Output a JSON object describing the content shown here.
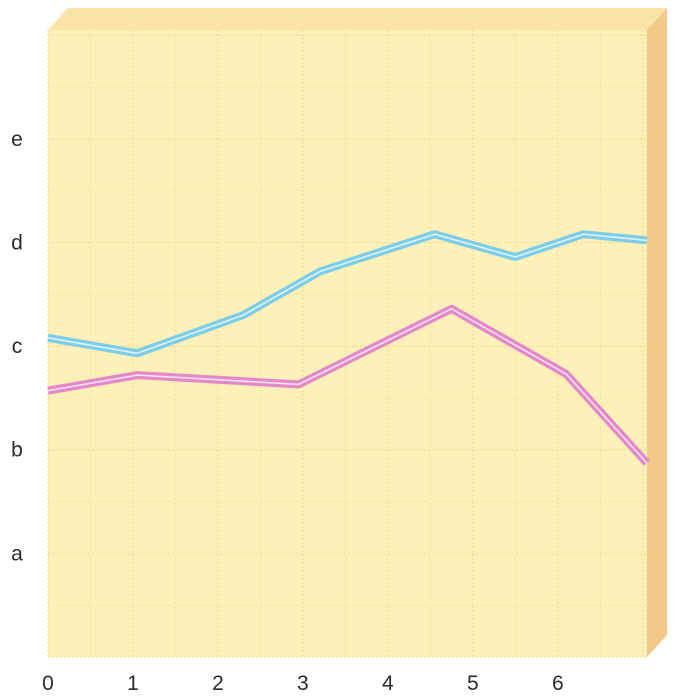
{
  "chart_data": {
    "type": "line",
    "title": "",
    "xlabel": "",
    "ylabel": "",
    "x_ticks": [
      "0",
      "1",
      "2",
      "3",
      "4",
      "5",
      "6"
    ],
    "y_ticks": [
      "a",
      "b",
      "c",
      "d",
      "e"
    ],
    "y_tick_values": [
      1,
      2,
      3,
      4,
      5
    ],
    "xlim": [
      0,
      7.05
    ],
    "ylim": [
      0,
      6.05
    ],
    "grid": true,
    "colors": {
      "background": "#fdf0b8",
      "grid": "#efd98a",
      "side_face": "#f2c986",
      "top_face": "#fae3a6"
    },
    "series": [
      {
        "color": "#7ccde8",
        "points": [
          [
            0,
            3.08
          ],
          [
            1.05,
            2.93
          ],
          [
            2.3,
            3.3
          ],
          [
            3.2,
            3.72
          ],
          [
            4.55,
            4.08
          ],
          [
            5.5,
            3.86
          ],
          [
            6.3,
            4.08
          ],
          [
            7.05,
            4.02
          ]
        ]
      },
      {
        "color": "#e388c8",
        "points": [
          [
            0,
            2.57
          ],
          [
            1.05,
            2.72
          ],
          [
            2.95,
            2.63
          ],
          [
            4.75,
            3.36
          ],
          [
            6.1,
            2.73
          ],
          [
            7.05,
            1.87
          ]
        ]
      }
    ]
  }
}
